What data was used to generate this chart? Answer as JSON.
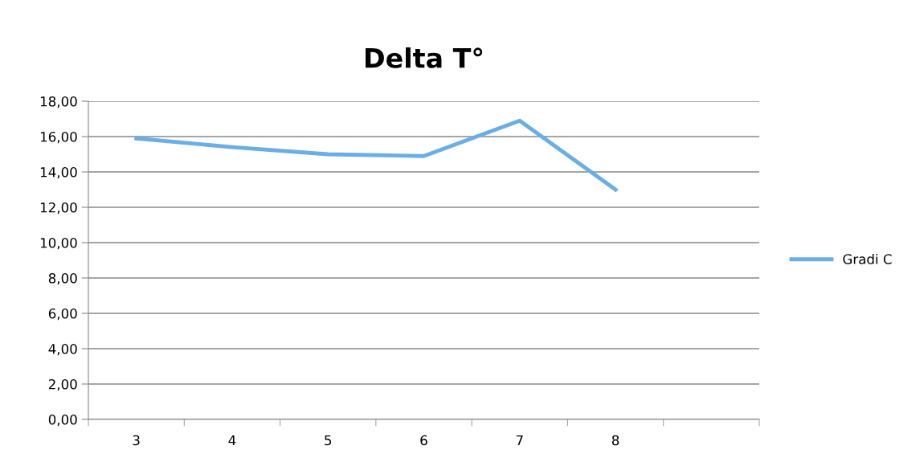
{
  "chart_data": {
    "type": "line",
    "title": "Delta T°",
    "categories": [
      "3",
      "4",
      "5",
      "6",
      "7",
      "8",
      null
    ],
    "series": [
      {
        "name": "Gradi C",
        "color": "#6aaee6",
        "values": [
          15.9,
          15.4,
          15.0,
          14.9,
          16.9,
          13.0,
          null
        ]
      }
    ],
    "ylim": [
      0,
      18
    ],
    "yticks": [
      {
        "value": 0,
        "label": "0,00"
      },
      {
        "value": 2,
        "label": "2,00"
      },
      {
        "value": 4,
        "label": "4,00"
      },
      {
        "value": 6,
        "label": "6,00"
      },
      {
        "value": 8,
        "label": "8,00"
      },
      {
        "value": 10,
        "label": "10,00"
      },
      {
        "value": 12,
        "label": "12,00"
      },
      {
        "value": 14,
        "label": "14,00"
      },
      {
        "value": 16,
        "label": "16,00"
      },
      {
        "value": 18,
        "label": "18,00"
      }
    ],
    "grid": "y",
    "legend": "right",
    "marker": "none",
    "line_style": "solid"
  }
}
